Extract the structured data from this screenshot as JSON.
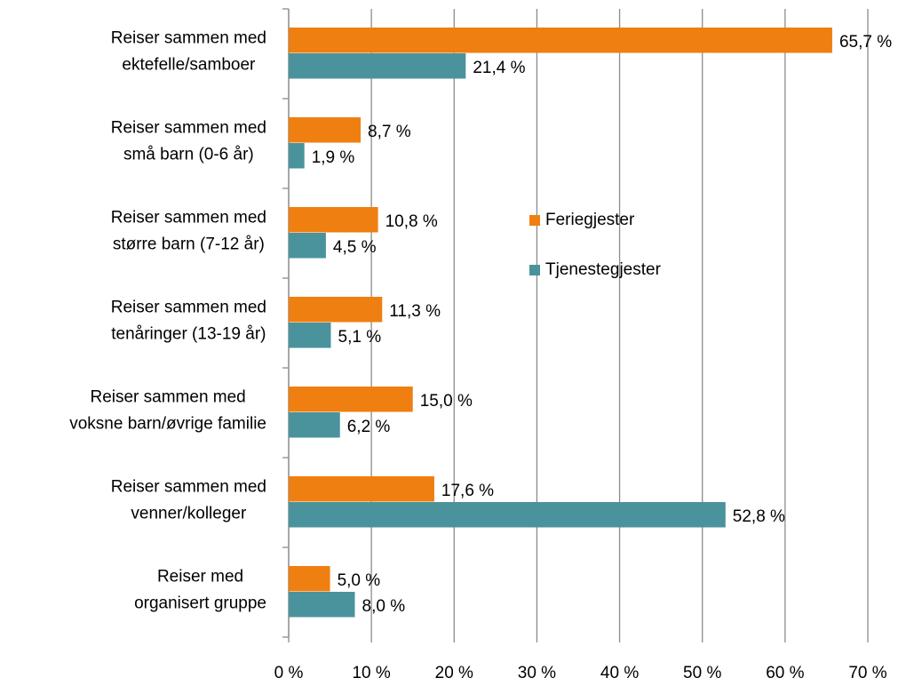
{
  "chart_data": {
    "type": "bar",
    "orientation": "horizontal",
    "categories": [
      "Reiser sammen med\nektefelle/samboer",
      "Reiser sammen med\nsmå barn (0-6 år)",
      "Reiser sammen med\nstørre barn (7-12 år)",
      "Reiser sammen med\ntenåringer (13-19 år)",
      "Reiser sammen med\nvoksne barn/øvrige familie",
      "Reiser sammen med\nvenner/kolleger",
      "Reiser med\norganisert gruppe"
    ],
    "series": [
      {
        "name": "Feriegjester",
        "color": "#ef7f10",
        "values": [
          65.7,
          8.7,
          10.8,
          11.3,
          15.0,
          17.6,
          5.0
        ],
        "value_labels": [
          "65,7 %",
          "8,7 %",
          "10,8 %",
          "11,3 %",
          "15,0 %",
          "17,6 %",
          "5,0 %"
        ]
      },
      {
        "name": "Tjenestegjester",
        "color": "#4a939c",
        "values": [
          21.4,
          1.9,
          4.5,
          5.1,
          6.2,
          52.8,
          8.0
        ],
        "value_labels": [
          "21,4 %",
          "1,9 %",
          "4,5 %",
          "5,1 %",
          "6,2 %",
          "52,8 %",
          "8,0 %"
        ]
      }
    ],
    "xlim": [
      0,
      70
    ],
    "xticks": [
      {
        "value": 0,
        "label": "0 %"
      },
      {
        "value": 10,
        "label": "10 %"
      },
      {
        "value": 20,
        "label": "20 %"
      },
      {
        "value": 30,
        "label": "30 %"
      },
      {
        "value": 40,
        "label": "40 %"
      },
      {
        "value": 50,
        "label": "50 %"
      },
      {
        "value": 60,
        "label": "60 %"
      },
      {
        "value": 70,
        "label": "70 %"
      }
    ],
    "grid": true,
    "legend": "center"
  }
}
